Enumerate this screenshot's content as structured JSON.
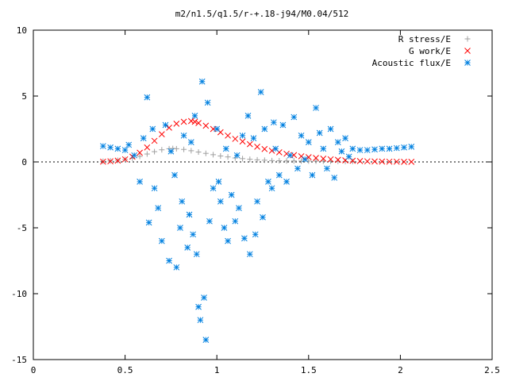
{
  "chart_data": {
    "type": "scatter",
    "title": "m2/n1.5/q1.5/r-+.18-j94/M0.04/512",
    "xlabel": "",
    "ylabel": "",
    "xlim": [
      0,
      2.5
    ],
    "ylim": [
      -15,
      10
    ],
    "x_ticks": [
      "0",
      "0.5",
      "1",
      "1.5",
      "2",
      "2.5"
    ],
    "y_ticks": [
      "10",
      "5",
      "0",
      "-5",
      "-10",
      "-15"
    ],
    "x_tick_values": [
      0,
      0.5,
      1,
      1.5,
      2,
      2.5
    ],
    "y_tick_values": [
      10,
      5,
      0,
      -5,
      -10,
      -15
    ],
    "grid": false,
    "legend_position": "top-right",
    "series": [
      {
        "name": "R stress/E",
        "marker": "plus",
        "color": "#a0a0a0",
        "x": [
          0.38,
          0.42,
          0.46,
          0.5,
          0.54,
          0.58,
          0.62,
          0.66,
          0.7,
          0.74,
          0.76,
          0.78,
          0.82,
          0.86,
          0.9,
          0.94,
          0.98,
          1.02,
          1.06,
          1.1,
          1.14,
          1.18,
          1.22,
          1.26,
          1.3,
          1.34,
          1.38,
          1.42,
          1.46,
          1.5,
          1.54,
          1.58,
          1.62,
          1.66,
          1.7,
          1.74
        ],
        "y": [
          0.05,
          0.08,
          0.12,
          0.18,
          0.28,
          0.42,
          0.6,
          0.78,
          0.92,
          1.0,
          1.02,
          1.0,
          0.95,
          0.85,
          0.75,
          0.65,
          0.55,
          0.45,
          0.38,
          0.3,
          0.25,
          0.2,
          0.16,
          0.13,
          0.1,
          0.09,
          0.08,
          0.08,
          0.07,
          0.07,
          0.06,
          0.06,
          0.05,
          0.05,
          0.04,
          0.04
        ]
      },
      {
        "name": "G work/E",
        "marker": "cross",
        "color": "#ff0000",
        "x": [
          0.38,
          0.42,
          0.46,
          0.5,
          0.54,
          0.58,
          0.62,
          0.66,
          0.7,
          0.74,
          0.78,
          0.82,
          0.86,
          0.88,
          0.9,
          0.94,
          0.98,
          1.02,
          1.06,
          1.1,
          1.14,
          1.18,
          1.22,
          1.26,
          1.3,
          1.34,
          1.38,
          1.42,
          1.46,
          1.5,
          1.54,
          1.58,
          1.62,
          1.66,
          1.7,
          1.74,
          1.78,
          1.82,
          1.86,
          1.9,
          1.94,
          1.98,
          2.02,
          2.06
        ],
        "y": [
          0.02,
          0.05,
          0.1,
          0.2,
          0.4,
          0.7,
          1.1,
          1.6,
          2.1,
          2.6,
          2.9,
          3.05,
          3.1,
          3.05,
          2.95,
          2.75,
          2.5,
          2.25,
          2.0,
          1.75,
          1.55,
          1.35,
          1.15,
          0.98,
          0.85,
          0.73,
          0.62,
          0.52,
          0.43,
          0.36,
          0.3,
          0.25,
          0.2,
          0.16,
          0.12,
          0.09,
          0.07,
          0.05,
          0.04,
          0.03,
          0.02,
          0.02,
          0.01,
          0.01
        ]
      },
      {
        "name": "Acoustic flux/E",
        "marker": "star",
        "color": "#0080e0",
        "x": [
          0.38,
          0.42,
          0.46,
          0.5,
          0.52,
          0.55,
          0.58,
          0.6,
          0.62,
          0.63,
          0.65,
          0.66,
          0.68,
          0.7,
          0.72,
          0.74,
          0.75,
          0.77,
          0.78,
          0.8,
          0.81,
          0.82,
          0.84,
          0.85,
          0.86,
          0.87,
          0.88,
          0.89,
          0.9,
          0.91,
          0.92,
          0.93,
          0.94,
          0.95,
          0.96,
          0.98,
          1.0,
          1.01,
          1.02,
          1.04,
          1.05,
          1.06,
          1.08,
          1.1,
          1.11,
          1.12,
          1.14,
          1.15,
          1.17,
          1.18,
          1.2,
          1.21,
          1.22,
          1.24,
          1.25,
          1.26,
          1.28,
          1.3,
          1.31,
          1.32,
          1.34,
          1.36,
          1.38,
          1.4,
          1.42,
          1.44,
          1.46,
          1.48,
          1.5,
          1.52,
          1.54,
          1.56,
          1.58,
          1.6,
          1.62,
          1.64,
          1.66,
          1.68,
          1.7,
          1.72,
          1.74,
          1.78,
          1.82,
          1.86,
          1.9,
          1.94,
          1.98,
          2.02,
          2.06
        ],
        "y": [
          1.2,
          1.1,
          1.0,
          0.9,
          1.3,
          0.5,
          -1.5,
          1.8,
          4.9,
          -4.6,
          2.5,
          -2.0,
          -3.5,
          -6.0,
          2.8,
          -7.5,
          0.8,
          -1.0,
          -8.0,
          -5.0,
          -3.0,
          2.0,
          -6.5,
          -4.0,
          1.5,
          -5.5,
          3.5,
          -7.0,
          -11.0,
          -12.0,
          6.1,
          -10.3,
          -13.5,
          4.5,
          -4.5,
          -2.0,
          2.5,
          -1.5,
          -3.0,
          -5.0,
          1.0,
          -6.0,
          -2.5,
          -4.5,
          0.5,
          -3.5,
          2.0,
          -5.8,
          3.5,
          -7.0,
          1.8,
          -5.5,
          -3.0,
          5.3,
          -4.2,
          2.5,
          -1.5,
          -2.0,
          3.0,
          1.0,
          -1.0,
          2.8,
          -1.5,
          0.5,
          3.4,
          -0.5,
          2.0,
          0.2,
          1.5,
          -1.0,
          4.1,
          2.2,
          1.0,
          -0.5,
          2.5,
          -1.2,
          1.5,
          0.8,
          1.8,
          0.4,
          1.0,
          0.9,
          0.9,
          0.95,
          1.0,
          1.0,
          1.05,
          1.1,
          1.15
        ]
      }
    ]
  }
}
